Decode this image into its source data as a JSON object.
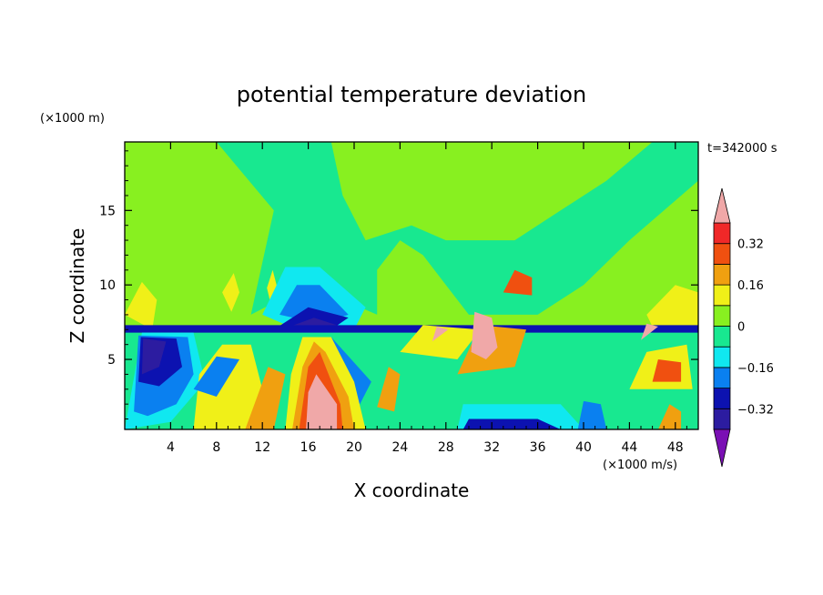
{
  "chart_data": {
    "type": "heatmap",
    "title": "potential temperature deviation",
    "xlabel": "X coordinate",
    "ylabel": "Z coordinate",
    "x_unit": "(×1000 m/s)",
    "y_unit": "(×1000 m)",
    "time_label": "t=342000 s",
    "xlim": [
      0,
      50
    ],
    "ylim": [
      0.3,
      19.6
    ],
    "x_ticks": [
      4,
      8,
      12,
      16,
      20,
      24,
      28,
      32,
      36,
      40,
      44,
      48
    ],
    "y_ticks": [
      5,
      10,
      15
    ],
    "colorbar": {
      "levels": [
        -0.4,
        -0.32,
        -0.24,
        -0.16,
        -0.08,
        0,
        0.08,
        0.16,
        0.24,
        0.32,
        0.4
      ],
      "tick_labels": [
        "0.32",
        "0.16",
        "0",
        "−0.16",
        "−0.32"
      ],
      "tick_values": [
        0.32,
        0.16,
        0,
        -0.16,
        -0.32
      ],
      "colors": [
        "#7a10b4",
        "#2c1ca0",
        "#0c12b0",
        "#0a80f0",
        "#10e8f0",
        "#18e890",
        "#88f020",
        "#f0f018",
        "#f0a010",
        "#f05010",
        "#f02828",
        "#f0a8a8"
      ],
      "extend": "both"
    },
    "features": [
      {
        "kind": "background",
        "value": 0.04
      },
      {
        "kind": "region",
        "value": -0.04,
        "pts": [
          [
            8,
            19.6
          ],
          [
            13,
            15
          ],
          [
            11,
            8
          ],
          [
            16,
            10
          ],
          [
            22,
            8
          ],
          [
            22,
            11
          ],
          [
            24,
            13
          ],
          [
            26,
            12
          ],
          [
            28,
            10
          ],
          [
            30,
            8
          ],
          [
            36,
            8
          ],
          [
            40,
            10
          ],
          [
            44,
            13
          ],
          [
            50,
            17
          ],
          [
            50,
            19.6
          ],
          [
            46,
            19.6
          ],
          [
            42,
            17
          ],
          [
            38,
            15
          ],
          [
            34,
            13
          ],
          [
            28,
            13
          ],
          [
            25,
            14
          ],
          [
            21,
            13
          ],
          [
            19,
            16
          ],
          [
            18,
            19.6
          ]
        ]
      },
      {
        "kind": "region",
        "value": -0.04,
        "pts": [
          [
            0,
            0.3
          ],
          [
            50,
            0.3
          ],
          [
            50,
            7
          ],
          [
            0,
            7
          ]
        ]
      },
      {
        "kind": "region",
        "value": 0.12,
        "pts": [
          [
            0,
            8
          ],
          [
            1.5,
            10.2
          ],
          [
            2.8,
            9
          ],
          [
            2.4,
            7
          ]
        ]
      },
      {
        "kind": "region",
        "value": 0.12,
        "pts": [
          [
            8.5,
            9.5
          ],
          [
            9.5,
            10.8
          ],
          [
            10,
            9.5
          ],
          [
            9.3,
            8.2
          ]
        ]
      },
      {
        "kind": "region",
        "value": 0.12,
        "pts": [
          [
            12.4,
            9.8
          ],
          [
            12.9,
            11
          ],
          [
            13.3,
            9.8
          ],
          [
            12.8,
            8.5
          ]
        ]
      },
      {
        "kind": "region",
        "value": -0.12,
        "pts": [
          [
            12,
            8
          ],
          [
            14,
            11.2
          ],
          [
            17,
            11.2
          ],
          [
            21,
            8.5
          ],
          [
            20,
            7
          ],
          [
            15,
            7
          ]
        ]
      },
      {
        "kind": "region",
        "value": -0.2,
        "pts": [
          [
            13.5,
            8
          ],
          [
            15,
            10
          ],
          [
            17,
            10
          ],
          [
            19.5,
            8
          ],
          [
            17,
            7.4
          ]
        ]
      },
      {
        "kind": "region",
        "value": -0.28,
        "pts": [
          [
            13,
            7
          ],
          [
            16,
            8.5
          ],
          [
            19.5,
            7.8
          ],
          [
            18,
            7
          ],
          [
            15,
            7
          ]
        ]
      },
      {
        "kind": "region",
        "value": -0.36,
        "pts": [
          [
            14,
            7.1
          ],
          [
            16.5,
            7.8
          ],
          [
            18.5,
            7.3
          ],
          [
            16,
            7
          ]
        ]
      },
      {
        "kind": "region",
        "value": 0.12,
        "pts": [
          [
            45.5,
            8
          ],
          [
            48,
            10
          ],
          [
            50,
            9.5
          ],
          [
            50,
            7.2
          ],
          [
            46,
            7.2
          ]
        ]
      },
      {
        "kind": "region",
        "value": -0.28,
        "pts": [
          [
            0,
            6.8
          ],
          [
            50,
            6.8
          ],
          [
            50,
            7.3
          ],
          [
            0,
            7.3
          ]
        ]
      },
      {
        "kind": "region",
        "value": -0.12,
        "pts": [
          [
            0,
            0.3
          ],
          [
            1.5,
            6.8
          ],
          [
            6,
            6.8
          ],
          [
            7,
            3.5
          ],
          [
            4,
            0.8
          ]
        ]
      },
      {
        "kind": "region",
        "value": -0.2,
        "pts": [
          [
            0.8,
            1.5
          ],
          [
            1.2,
            6.6
          ],
          [
            5.5,
            6.5
          ],
          [
            6,
            4
          ],
          [
            4.5,
            2
          ],
          [
            2,
            1.2
          ]
        ]
      },
      {
        "kind": "region",
        "value": -0.28,
        "pts": [
          [
            1.2,
            3.5
          ],
          [
            1.4,
            6.5
          ],
          [
            4.5,
            6.4
          ],
          [
            5,
            4.5
          ],
          [
            3,
            3.2
          ]
        ]
      },
      {
        "kind": "region",
        "value": -0.36,
        "pts": [
          [
            1.5,
            4
          ],
          [
            1.6,
            6.4
          ],
          [
            3.6,
            6.2
          ],
          [
            3,
            4.5
          ]
        ]
      },
      {
        "kind": "region",
        "value": 0.12,
        "pts": [
          [
            6,
            0.3
          ],
          [
            6.5,
            4
          ],
          [
            8.5,
            6
          ],
          [
            11,
            6
          ],
          [
            12,
            3
          ],
          [
            11.5,
            0.3
          ]
        ]
      },
      {
        "kind": "region",
        "value": 0.2,
        "pts": [
          [
            10.5,
            0.3
          ],
          [
            12.5,
            4.5
          ],
          [
            14,
            4
          ],
          [
            13,
            0.3
          ]
        ]
      },
      {
        "kind": "region",
        "value": -0.2,
        "pts": [
          [
            6,
            3
          ],
          [
            8,
            5.2
          ],
          [
            10,
            5
          ],
          [
            8,
            2.5
          ]
        ]
      },
      {
        "kind": "region",
        "value": -0.2,
        "pts": [
          [
            18,
            6.5
          ],
          [
            21.5,
            3.5
          ],
          [
            20.5,
            2
          ],
          [
            17.5,
            5
          ]
        ]
      },
      {
        "kind": "region",
        "value": 0.12,
        "pts": [
          [
            14,
            0.3
          ],
          [
            14.5,
            4
          ],
          [
            15.5,
            6.5
          ],
          [
            18,
            6.5
          ],
          [
            20,
            3.5
          ],
          [
            21,
            0.3
          ]
        ]
      },
      {
        "kind": "region",
        "value": 0.2,
        "pts": [
          [
            14.6,
            0.3
          ],
          [
            15.5,
            4.5
          ],
          [
            16.5,
            6.2
          ],
          [
            17.5,
            5.5
          ],
          [
            19.5,
            2.5
          ],
          [
            20,
            0.3
          ]
        ]
      },
      {
        "kind": "region",
        "value": 0.28,
        "pts": [
          [
            15.2,
            0.3
          ],
          [
            16,
            4.5
          ],
          [
            17,
            5.5
          ],
          [
            18.8,
            2
          ],
          [
            19,
            0.3
          ]
        ]
      },
      {
        "kind": "region",
        "value": 0.44,
        "pts": [
          [
            15.8,
            0.3
          ],
          [
            16,
            2.8
          ],
          [
            16.7,
            4
          ],
          [
            18.5,
            2
          ],
          [
            18.5,
            0.3
          ]
        ]
      },
      {
        "kind": "region",
        "value": 0.2,
        "pts": [
          [
            22,
            1.8
          ],
          [
            23,
            4.5
          ],
          [
            24,
            4
          ],
          [
            23.5,
            1.5
          ]
        ]
      },
      {
        "kind": "region",
        "value": -0.12,
        "pts": [
          [
            29,
            0.3
          ],
          [
            29.5,
            2
          ],
          [
            38,
            2
          ],
          [
            40,
            0.3
          ]
        ]
      },
      {
        "kind": "region",
        "value": -0.28,
        "pts": [
          [
            29.5,
            0.3
          ],
          [
            30,
            1
          ],
          [
            36,
            1
          ],
          [
            38,
            0.3
          ]
        ]
      },
      {
        "kind": "region",
        "value": -0.2,
        "pts": [
          [
            39.5,
            0.3
          ],
          [
            40,
            2.2
          ],
          [
            41.5,
            2
          ],
          [
            42,
            0.3
          ]
        ]
      },
      {
        "kind": "region",
        "value": 0.12,
        "pts": [
          [
            24,
            5.5
          ],
          [
            26,
            7.3
          ],
          [
            31,
            7
          ],
          [
            29,
            5
          ]
        ]
      },
      {
        "kind": "region",
        "value": 0.2,
        "pts": [
          [
            29,
            4
          ],
          [
            31,
            7.3
          ],
          [
            35,
            7
          ],
          [
            34,
            4.5
          ]
        ]
      },
      {
        "kind": "region",
        "value": 0.44,
        "pts": [
          [
            30.2,
            5.5
          ],
          [
            30.5,
            8.2
          ],
          [
            32,
            7.8
          ],
          [
            32.5,
            5.8
          ],
          [
            31.5,
            5
          ]
        ]
      },
      {
        "kind": "region",
        "value": 0.44,
        "pts": [
          [
            26.8,
            6.2
          ],
          [
            27.2,
            7.2
          ],
          [
            28.2,
            7
          ]
        ]
      },
      {
        "kind": "region",
        "value": 0.28,
        "pts": [
          [
            33,
            9.5
          ],
          [
            34,
            11
          ],
          [
            35.5,
            10.5
          ],
          [
            35.5,
            9.3
          ]
        ]
      },
      {
        "kind": "region",
        "value": 0.12,
        "pts": [
          [
            44,
            3
          ],
          [
            45.5,
            5.5
          ],
          [
            49,
            6
          ],
          [
            49.5,
            3
          ]
        ]
      },
      {
        "kind": "region",
        "value": 0.28,
        "pts": [
          [
            46,
            3.5
          ],
          [
            46.5,
            5
          ],
          [
            48.5,
            4.8
          ],
          [
            48.5,
            3.5
          ]
        ]
      },
      {
        "kind": "region",
        "value": 0.44,
        "pts": [
          [
            45,
            6.3
          ],
          [
            45.5,
            7.4
          ],
          [
            46.5,
            7.2
          ]
        ]
      },
      {
        "kind": "region",
        "value": 0.2,
        "pts": [
          [
            46.5,
            0.3
          ],
          [
            47.5,
            2
          ],
          [
            48.5,
            1.5
          ],
          [
            48.5,
            0.3
          ]
        ]
      }
    ]
  }
}
